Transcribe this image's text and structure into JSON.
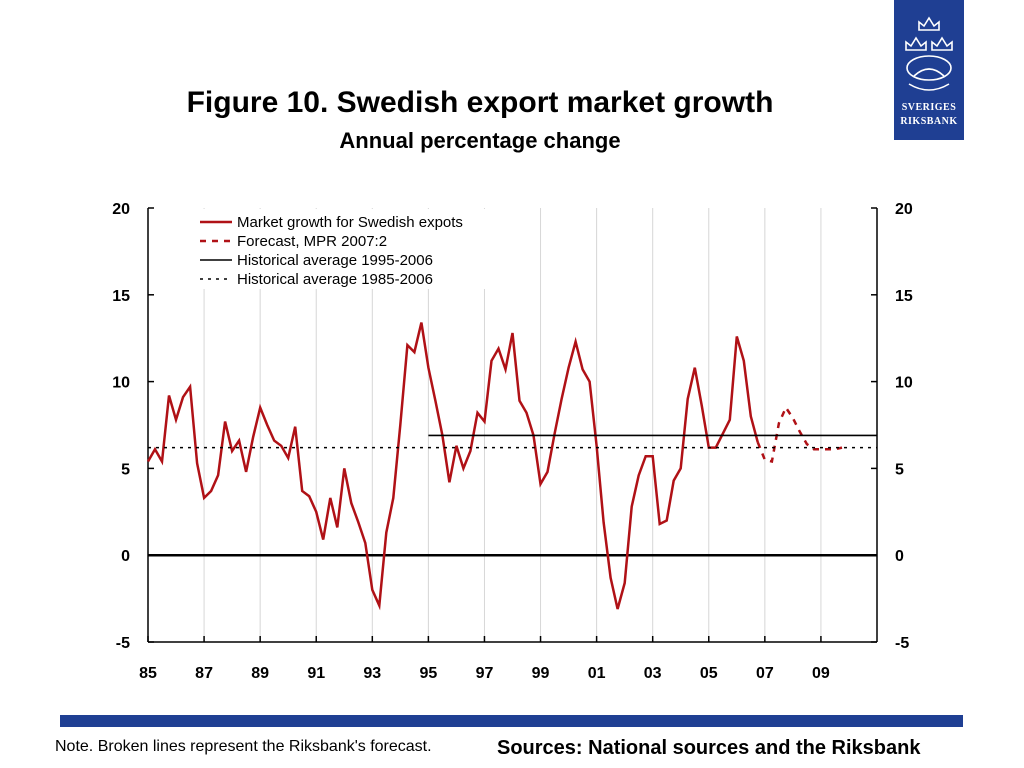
{
  "header": {
    "title": "Figure 10. Swedish export market growth",
    "subtitle": "Annual percentage change"
  },
  "logo": {
    "line1": "SVERIGES",
    "line2": "RIKSBANK"
  },
  "footer": {
    "note": "Note. Broken lines represent the Riksbank's forecast.",
    "sources": "Sources: National sources and the Riksbank"
  },
  "colors": {
    "series": "#b01116",
    "brand": "#1f3f93",
    "axis": "#000000"
  },
  "chart_data": {
    "type": "line",
    "title": "Figure 10. Swedish export market growth",
    "subtitle": "Annual percentage change",
    "xlabel": "",
    "ylabel": "",
    "xlim": [
      1985,
      2011
    ],
    "ylim": [
      -5,
      20
    ],
    "x_ticks": [
      1985,
      1987,
      1989,
      1991,
      1993,
      1995,
      1997,
      1999,
      2001,
      2003,
      2005,
      2007,
      2009
    ],
    "x_tick_labels": [
      "85",
      "87",
      "89",
      "91",
      "93",
      "95",
      "97",
      "99",
      "01",
      "03",
      "05",
      "07",
      "09"
    ],
    "y_ticks": [
      -5,
      0,
      5,
      10,
      15,
      20
    ],
    "y_tick_labels": [
      "-5",
      "0",
      "5",
      "10",
      "15",
      "20"
    ],
    "grid": "vertical",
    "legend_position": "top-left",
    "series": [
      {
        "name": "Market growth for Swedish expots",
        "style": "solid",
        "color": "#b01116",
        "x": [
          1985,
          1985.25,
          1985.5,
          1985.75,
          1986,
          1986.25,
          1986.5,
          1986.75,
          1987,
          1987.25,
          1987.5,
          1987.75,
          1988,
          1988.25,
          1988.5,
          1988.75,
          1989,
          1989.25,
          1989.5,
          1989.75,
          1990,
          1990.25,
          1990.5,
          1990.75,
          1991,
          1991.25,
          1991.5,
          1991.75,
          1992,
          1992.25,
          1992.5,
          1992.75,
          1993,
          1993.25,
          1993.5,
          1993.75,
          1994,
          1994.25,
          1994.5,
          1994.75,
          1995,
          1995.25,
          1995.5,
          1995.75,
          1996,
          1996.25,
          1996.5,
          1996.75,
          1997,
          1997.25,
          1997.5,
          1997.75,
          1998,
          1998.25,
          1998.5,
          1998.75,
          1999,
          1999.25,
          1999.5,
          1999.75,
          2000,
          2000.25,
          2000.5,
          2000.75,
          2001,
          2001.25,
          2001.5,
          2001.75,
          2002,
          2002.25,
          2002.5,
          2002.75,
          2003,
          2003.25,
          2003.5,
          2003.75,
          2004,
          2004.25,
          2004.5,
          2004.75,
          2005,
          2005.25,
          2005.5,
          2005.75,
          2006,
          2006.25,
          2006.5,
          2006.75
        ],
        "y": [
          5.4,
          6.1,
          5.4,
          9.2,
          7.8,
          9.1,
          9.7,
          5.3,
          3.3,
          3.7,
          4.6,
          7.7,
          6.0,
          6.6,
          4.8,
          6.8,
          8.5,
          7.5,
          6.6,
          6.3,
          5.6,
          7.4,
          3.7,
          3.4,
          2.5,
          0.9,
          3.3,
          1.6,
          5.0,
          3.0,
          1.9,
          0.7,
          -2.0,
          -2.9,
          1.3,
          3.3,
          7.5,
          12.1,
          11.7,
          13.4,
          10.8,
          8.9,
          6.9,
          4.2,
          6.3,
          5.0,
          6.0,
          8.2,
          7.7,
          11.2,
          11.9,
          10.7,
          12.8,
          8.9,
          8.2,
          6.9,
          4.1,
          4.8,
          7.0,
          9.0,
          10.8,
          12.3,
          10.7,
          10.0,
          6.3,
          1.9,
          -1.3,
          -3.1,
          -1.6,
          2.8,
          4.6,
          5.7,
          5.7,
          1.8,
          2.0,
          4.3,
          5.0,
          9.0,
          10.8,
          8.6,
          6.2,
          6.2,
          7.0,
          7.8,
          12.6,
          11.2,
          8.0,
          6.5
        ]
      },
      {
        "name": "Forecast, MPR 2007:2",
        "style": "dashed",
        "color": "#b01116",
        "x": [
          2006.75,
          2007,
          2007.25,
          2007.5,
          2007.75,
          2008,
          2008.25,
          2008.5,
          2008.75,
          2009,
          2009.25,
          2009.5,
          2009.75
        ],
        "y": [
          6.5,
          5.5,
          5.4,
          7.6,
          8.5,
          7.9,
          7.1,
          6.4,
          6.1,
          6.1,
          6.1,
          6.1,
          6.2
        ]
      },
      {
        "name": "Historical average 1995-2006",
        "style": "solid",
        "color": "#000000",
        "x": [
          1995,
          2011
        ],
        "y": [
          6.9,
          6.9
        ]
      },
      {
        "name": "Historical average 1985-2006",
        "style": "dotted",
        "color": "#000000",
        "x": [
          1985,
          2011
        ],
        "y": [
          6.2,
          6.2
        ]
      }
    ]
  }
}
